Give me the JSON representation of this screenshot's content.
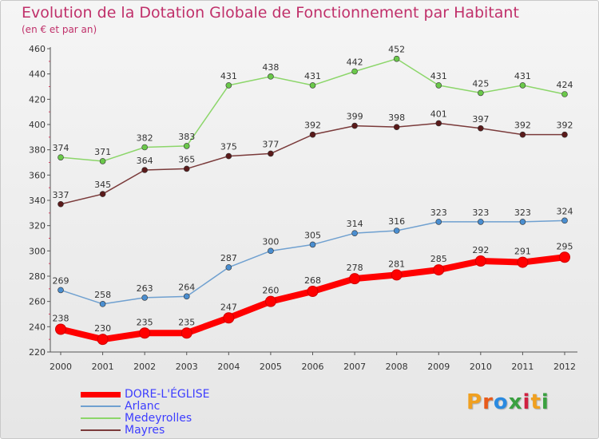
{
  "header": {
    "title": "Evolution de la Dotation Globale de Fonctionnement par Habitant",
    "subtitle": "(en € et par an)"
  },
  "logo": {
    "text": "Proxiti",
    "colors": [
      "#f0a020",
      "#e85a1a",
      "#2a8ae0",
      "#3aa040",
      "#d02040",
      "#f0a020",
      "#3aa040"
    ]
  },
  "chart_data": {
    "type": "line",
    "title": "Evolution de la Dotation Globale de Fonctionnement par Habitant",
    "subtitle": "(en € et par an)",
    "xlabel": "",
    "ylabel": "",
    "categories": [
      "2000",
      "2001",
      "2002",
      "2003",
      "2004",
      "2005",
      "2006",
      "2007",
      "2008",
      "2009",
      "2010",
      "2011",
      "2012"
    ],
    "ylim": [
      220,
      460
    ],
    "yticks": [
      220,
      240,
      260,
      280,
      300,
      320,
      340,
      360,
      380,
      400,
      420,
      440,
      460
    ],
    "grid": false,
    "legend_position": "bottom-left",
    "series": [
      {
        "name": "DORE-L'ÉGLISE",
        "color": "#ff0000",
        "values": [
          238,
          230,
          235,
          235,
          247,
          260,
          268,
          278,
          281,
          285,
          292,
          291,
          295
        ]
      },
      {
        "name": "Arlanc",
        "color": "#6fa0d0",
        "marker_color": "#4a8ed0",
        "values": [
          269,
          258,
          263,
          264,
          287,
          300,
          305,
          314,
          316,
          323,
          323,
          323,
          324
        ]
      },
      {
        "name": "Medeyrolles",
        "color": "#8cd66a",
        "marker_color": "#6ac84a",
        "values": [
          374,
          371,
          382,
          383,
          431,
          438,
          431,
          442,
          452,
          431,
          425,
          431,
          424
        ]
      },
      {
        "name": "Mayres",
        "color": "#7a3a3a",
        "marker_color": "#5a1a1a",
        "values": [
          337,
          345,
          364,
          365,
          375,
          377,
          392,
          399,
          398,
          401,
          397,
          392,
          392
        ]
      }
    ]
  }
}
